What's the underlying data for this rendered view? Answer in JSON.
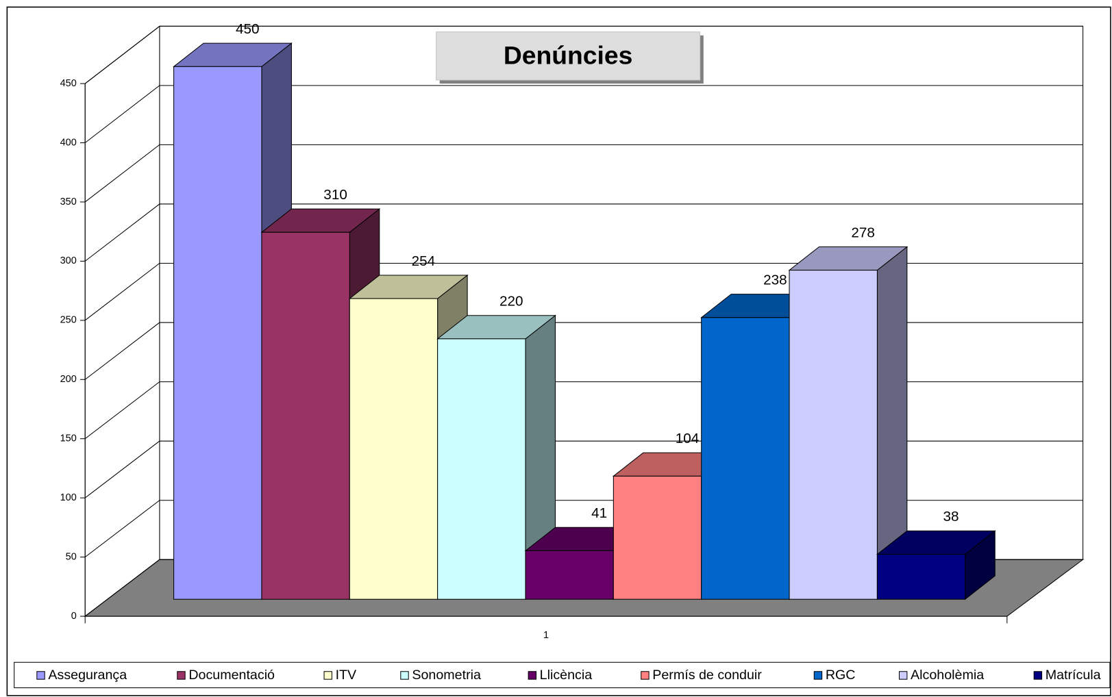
{
  "chart_data": {
    "type": "bar3d",
    "title": "Denúncies",
    "categories": [
      "1"
    ],
    "series": [
      {
        "name": "Assegurança",
        "color": "#9999ff",
        "values": [
          450
        ]
      },
      {
        "name": "Documentació",
        "color": "#993366",
        "values": [
          310
        ]
      },
      {
        "name": "ITV",
        "color": "#ffffcc",
        "values": [
          254
        ]
      },
      {
        "name": "Sonometria",
        "color": "#ccffff",
        "values": [
          220
        ]
      },
      {
        "name": "Llicència",
        "color": "#660066",
        "values": [
          41
        ]
      },
      {
        "name": "Permís de conduir",
        "color": "#ff8080",
        "values": [
          104
        ]
      },
      {
        "name": "RGC",
        "color": "#0066cc",
        "values": [
          238
        ]
      },
      {
        "name": "Alcoholèmia",
        "color": "#ccccff",
        "values": [
          278
        ]
      },
      {
        "name": "Matrícula",
        "color": "#000080",
        "values": [
          38
        ]
      }
    ],
    "ylim": [
      0,
      450
    ],
    "yticks": [
      0,
      50,
      100,
      150,
      200,
      250,
      300,
      350,
      400,
      450
    ],
    "grid": true,
    "legend": "bottom"
  }
}
